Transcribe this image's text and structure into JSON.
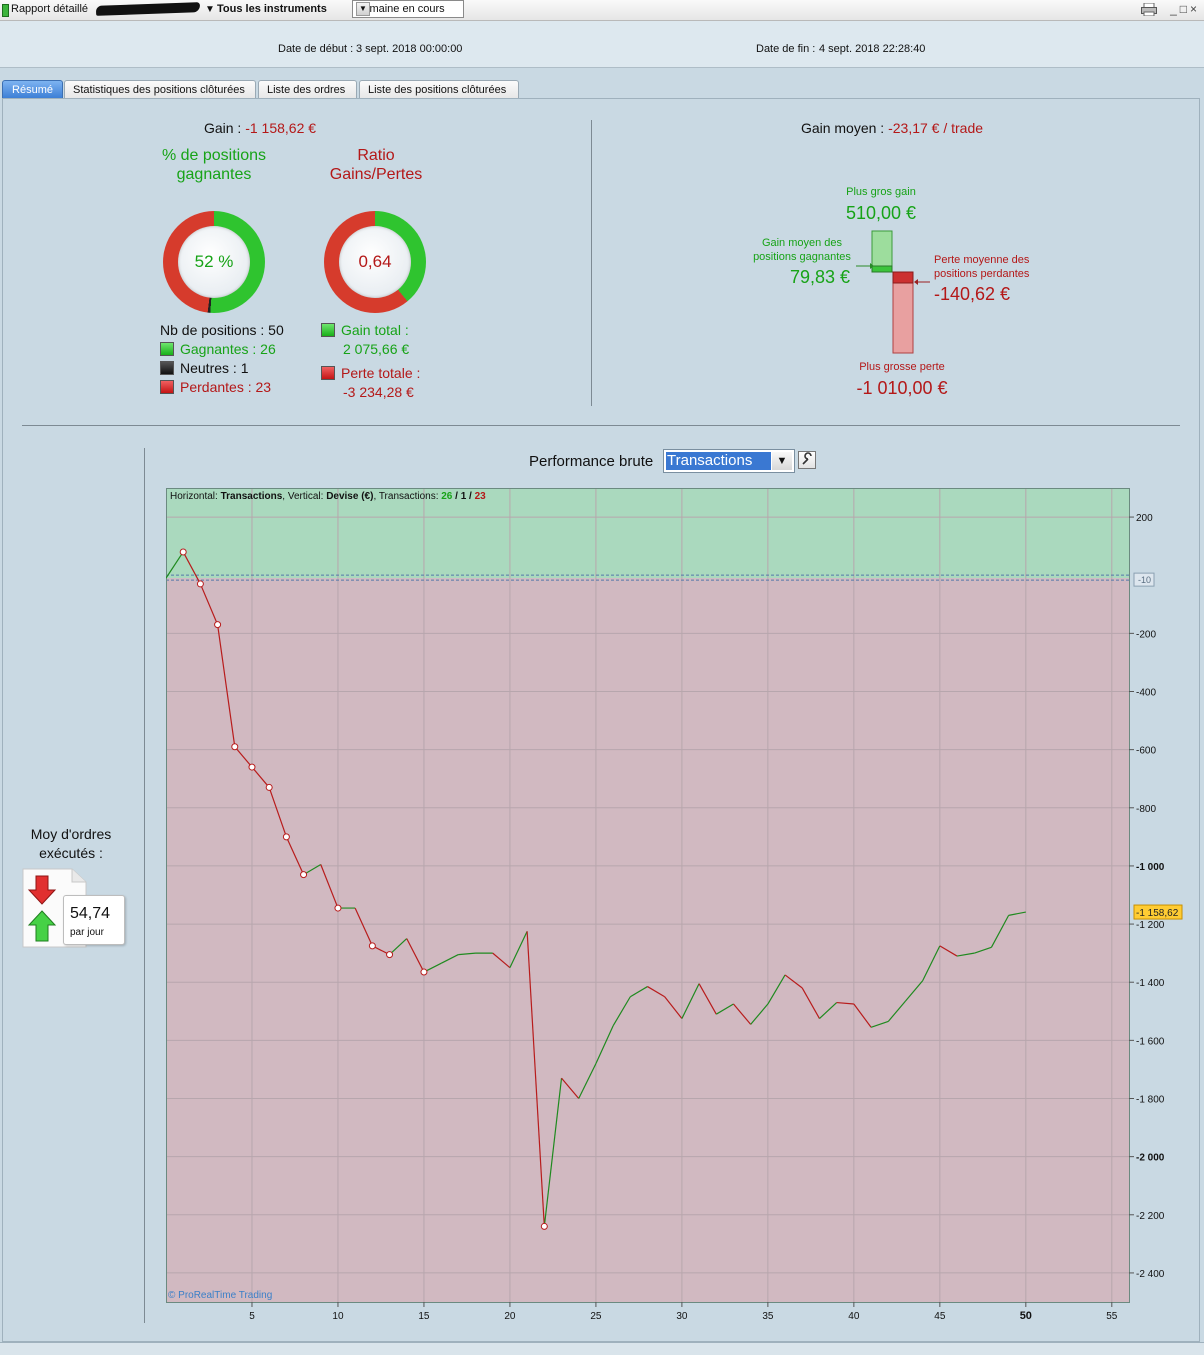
{
  "toolbar": {
    "report_label": "Rapport détaillé",
    "instruments_label": "Tous les instruments",
    "period_value": "Semaine en cours"
  },
  "header": {
    "start_label": "Date de début :",
    "start_value": "3 sept. 2018 00:00:00",
    "end_label": "Date de fin :",
    "end_value": "4 sept. 2018 22:28:40"
  },
  "tabs": [
    {
      "label": "Résumé"
    },
    {
      "label": "Statistiques des positions clôturées"
    },
    {
      "label": "Liste des ordres"
    },
    {
      "label": "Liste des positions clôturées"
    }
  ],
  "summary": {
    "gain_label": "Gain :",
    "gain_value": "-1 158,62 €",
    "pct_title": "% de positions gagnantes",
    "pct_value": "52 %",
    "pct_fraction": 0.52,
    "ratio_title": "Ratio Gains/Pertes",
    "ratio_value": "0,64",
    "ratio_fraction": 0.39,
    "nb_positions_label": "Nb de positions : 50",
    "winners_label": "Gagnantes : 26",
    "neutral_label": "Neutres : 1",
    "losers_label": "Perdantes : 23",
    "total_gain_label": "Gain total :",
    "total_gain_value": "2 075,66 €",
    "total_loss_label": "Perte totale :",
    "total_loss_value": "-3 234,28 €"
  },
  "avg": {
    "avg_gain_label": "Gain moyen :",
    "avg_gain_value": "-23,17 € / trade",
    "max_gain_label": "Plus gros gain",
    "max_gain_value": "510,00 €",
    "avg_win_label": "Gain moyen des positions gagnantes",
    "avg_win_value": "79,83 €",
    "avg_loss_label": "Perte moyenne des positions perdantes",
    "avg_loss_value": "-140,62 €",
    "max_loss_label": "Plus grosse perte",
    "max_loss_value": "-1 010,00 €"
  },
  "orders": {
    "title": "Moy d'ordres exécutés :",
    "value": "54,74",
    "unit": "par jour"
  },
  "performance": {
    "title": "Performance brute",
    "select_value": "Transactions",
    "info_prefix": "Horizontal: ",
    "info_h": "Transactions",
    "info_mid": ", Vertical: ",
    "info_v": "Devise (€)",
    "info_tr": ", Transactions: ",
    "info_w": "26",
    "info_sep1": " / ",
    "info_n": "1",
    "info_sep2": " / ",
    "info_l": "23",
    "watermark": "© ProRealTime Trading",
    "last_value_label": "-1 158,62",
    "zero_marker_label": "-10"
  },
  "chart_data": {
    "type": "line",
    "xlabel": "",
    "ylabel": "",
    "xlim": [
      0,
      56
    ],
    "ylim": [
      -2500,
      300
    ],
    "x_ticks": [
      5,
      10,
      15,
      20,
      25,
      30,
      35,
      40,
      45,
      50,
      55
    ],
    "y_ticks": [
      200,
      -200,
      -400,
      -600,
      -800,
      -1000,
      -1200,
      -1400,
      -1600,
      -1800,
      -2000,
      -2200,
      -2400
    ],
    "y_tick_labels": [
      "200",
      "-200",
      "-400",
      "-600",
      "-800",
      "-1 000",
      "-1 200",
      "-1 400",
      "-1 600",
      "-1 800",
      "-2 000",
      "-2 200",
      "-2 400"
    ],
    "bold_y_ticks": [
      -1000,
      -2000
    ],
    "bold_x_ticks": [
      50
    ],
    "x": [
      0,
      1,
      2,
      3,
      4,
      5,
      6,
      7,
      8,
      9,
      10,
      11,
      12,
      13,
      14,
      15,
      16,
      17,
      18,
      19,
      20,
      21,
      22,
      23,
      24,
      25,
      26,
      27,
      28,
      29,
      30,
      31,
      32,
      33,
      34,
      35,
      36,
      37,
      38,
      39,
      40,
      41,
      42,
      43,
      44,
      45,
      46,
      47,
      48,
      49,
      50
    ],
    "values": [
      -10,
      80,
      -30,
      -170,
      -590,
      -660,
      -730,
      -900,
      -1030,
      -995,
      -1145,
      -1145,
      -1275,
      -1305,
      -1250,
      -1365,
      -1335,
      -1305,
      -1300,
      -1300,
      -1350,
      -1225,
      -2240,
      -1730,
      -1800,
      -1680,
      -1550,
      -1450,
      -1415,
      -1450,
      -1525,
      -1405,
      -1510,
      -1475,
      -1545,
      -1475,
      -1375,
      -1420,
      -1525,
      -1470,
      -1475,
      -1555,
      -1535,
      -1465,
      -1395,
      -1275,
      -1310,
      -1300,
      -1280,
      -1170,
      -1158.62
    ]
  }
}
